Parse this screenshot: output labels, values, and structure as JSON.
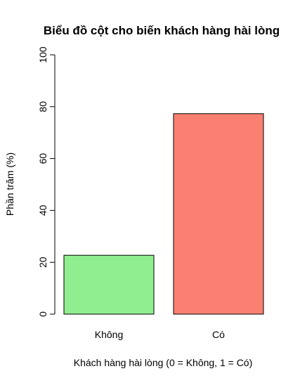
{
  "chart_data": {
    "type": "bar",
    "title": "Biểu đồ cột cho biến khách hàng hài lòng",
    "xlabel": "Khách hàng hài lòng (0 = Không, 1 = Có)",
    "ylabel": "Phần trăm (%)",
    "ylim": [
      0,
      100
    ],
    "yticks": [
      0,
      20,
      40,
      60,
      80,
      100
    ],
    "categories": [
      "Không",
      "Có"
    ],
    "values": [
      22.7,
      77.3
    ],
    "colors": [
      "#90ee90",
      "#fa8072"
    ],
    "grid": false
  }
}
